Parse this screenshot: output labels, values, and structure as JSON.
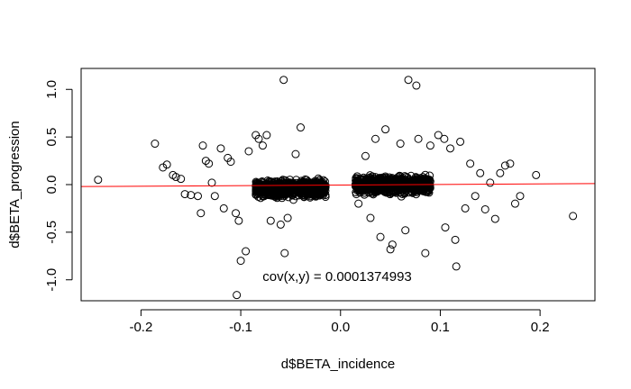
{
  "chart_data": {
    "type": "scatter",
    "title": "",
    "xlabel": "d$BETA_incidence",
    "ylabel": "d$BETA_progression",
    "xlim": [
      -0.26,
      0.255
    ],
    "ylim": [
      -1.22,
      1.22
    ],
    "xticks": [
      -0.2,
      -0.1,
      0.0,
      0.1,
      0.2
    ],
    "xtick_labels": [
      "-0.2",
      "-0.1",
      "0.0",
      "0.1",
      "0.2"
    ],
    "yticks": [
      -1.0,
      -0.5,
      0.0,
      0.5,
      1.0
    ],
    "ytick_labels": [
      "-1.0",
      "-0.5",
      "0.0",
      "0.5",
      "1.0"
    ],
    "grid": false,
    "marker": "open-circle",
    "annotation": "cov(x,y) = 0.0001374993",
    "regression_line": {
      "intercept": -0.005,
      "slope": 0.06,
      "color": "#ff0000"
    },
    "clusters": [
      {
        "x_range": [
          -0.085,
          -0.015
        ],
        "y_center": -0.04,
        "y_spread": 0.1,
        "count": 900
      },
      {
        "x_range": [
          0.015,
          0.09
        ],
        "y_center": 0.0,
        "y_spread": 0.1,
        "count": 900
      }
    ],
    "outliers": [
      {
        "x": -0.243,
        "y": 0.05
      },
      {
        "x": -0.186,
        "y": 0.43
      },
      {
        "x": -0.178,
        "y": 0.18
      },
      {
        "x": -0.174,
        "y": 0.21
      },
      {
        "x": -0.168,
        "y": 0.1
      },
      {
        "x": -0.165,
        "y": 0.08
      },
      {
        "x": -0.16,
        "y": 0.06
      },
      {
        "x": -0.156,
        "y": -0.1
      },
      {
        "x": -0.15,
        "y": -0.11
      },
      {
        "x": -0.143,
        "y": -0.12
      },
      {
        "x": -0.14,
        "y": -0.3
      },
      {
        "x": -0.138,
        "y": 0.41
      },
      {
        "x": -0.135,
        "y": 0.25
      },
      {
        "x": -0.132,
        "y": 0.22
      },
      {
        "x": -0.129,
        "y": 0.02
      },
      {
        "x": -0.126,
        "y": -0.12
      },
      {
        "x": -0.12,
        "y": 0.38
      },
      {
        "x": -0.117,
        "y": -0.25
      },
      {
        "x": -0.113,
        "y": 0.28
      },
      {
        "x": -0.11,
        "y": 0.24
      },
      {
        "x": -0.105,
        "y": -0.3
      },
      {
        "x": -0.102,
        "y": -0.38
      },
      {
        "x": -0.1,
        "y": -0.8
      },
      {
        "x": -0.095,
        "y": -0.7
      },
      {
        "x": -0.092,
        "y": 0.35
      },
      {
        "x": -0.085,
        "y": 0.52
      },
      {
        "x": -0.082,
        "y": 0.48
      },
      {
        "x": -0.078,
        "y": 0.41
      },
      {
        "x": -0.074,
        "y": 0.52
      },
      {
        "x": -0.07,
        "y": -0.38
      },
      {
        "x": -0.06,
        "y": -0.42
      },
      {
        "x": -0.057,
        "y": 1.1
      },
      {
        "x": -0.056,
        "y": -0.72
      },
      {
        "x": -0.053,
        "y": -0.35
      },
      {
        "x": -0.045,
        "y": 0.32
      },
      {
        "x": -0.04,
        "y": 0.6
      },
      {
        "x": -0.104,
        "y": -1.16
      },
      {
        "x": 0.018,
        "y": -0.2
      },
      {
        "x": 0.025,
        "y": 0.3
      },
      {
        "x": 0.03,
        "y": -0.35
      },
      {
        "x": 0.035,
        "y": 0.48
      },
      {
        "x": 0.04,
        "y": -0.55
      },
      {
        "x": 0.045,
        "y": 0.58
      },
      {
        "x": 0.05,
        "y": -0.68
      },
      {
        "x": 0.052,
        "y": -0.63
      },
      {
        "x": 0.06,
        "y": 0.43
      },
      {
        "x": 0.065,
        "y": -0.48
      },
      {
        "x": 0.068,
        "y": 1.1
      },
      {
        "x": 0.076,
        "y": 1.04
      },
      {
        "x": 0.078,
        "y": 0.48
      },
      {
        "x": 0.085,
        "y": -0.72
      },
      {
        "x": 0.09,
        "y": 0.41
      },
      {
        "x": 0.098,
        "y": 0.52
      },
      {
        "x": 0.104,
        "y": 0.48
      },
      {
        "x": 0.105,
        "y": -0.45
      },
      {
        "x": 0.11,
        "y": 0.38
      },
      {
        "x": 0.115,
        "y": -0.58
      },
      {
        "x": 0.116,
        "y": -0.86
      },
      {
        "x": 0.12,
        "y": 0.45
      },
      {
        "x": 0.125,
        "y": -0.25
      },
      {
        "x": 0.13,
        "y": 0.22
      },
      {
        "x": 0.135,
        "y": -0.12
      },
      {
        "x": 0.14,
        "y": 0.12
      },
      {
        "x": 0.145,
        "y": -0.26
      },
      {
        "x": 0.15,
        "y": 0.02
      },
      {
        "x": 0.155,
        "y": -0.36
      },
      {
        "x": 0.16,
        "y": 0.12
      },
      {
        "x": 0.165,
        "y": 0.2
      },
      {
        "x": 0.17,
        "y": 0.22
      },
      {
        "x": 0.175,
        "y": -0.2
      },
      {
        "x": 0.18,
        "y": -0.12
      },
      {
        "x": 0.196,
        "y": 0.1
      },
      {
        "x": 0.233,
        "y": -0.33
      }
    ]
  }
}
